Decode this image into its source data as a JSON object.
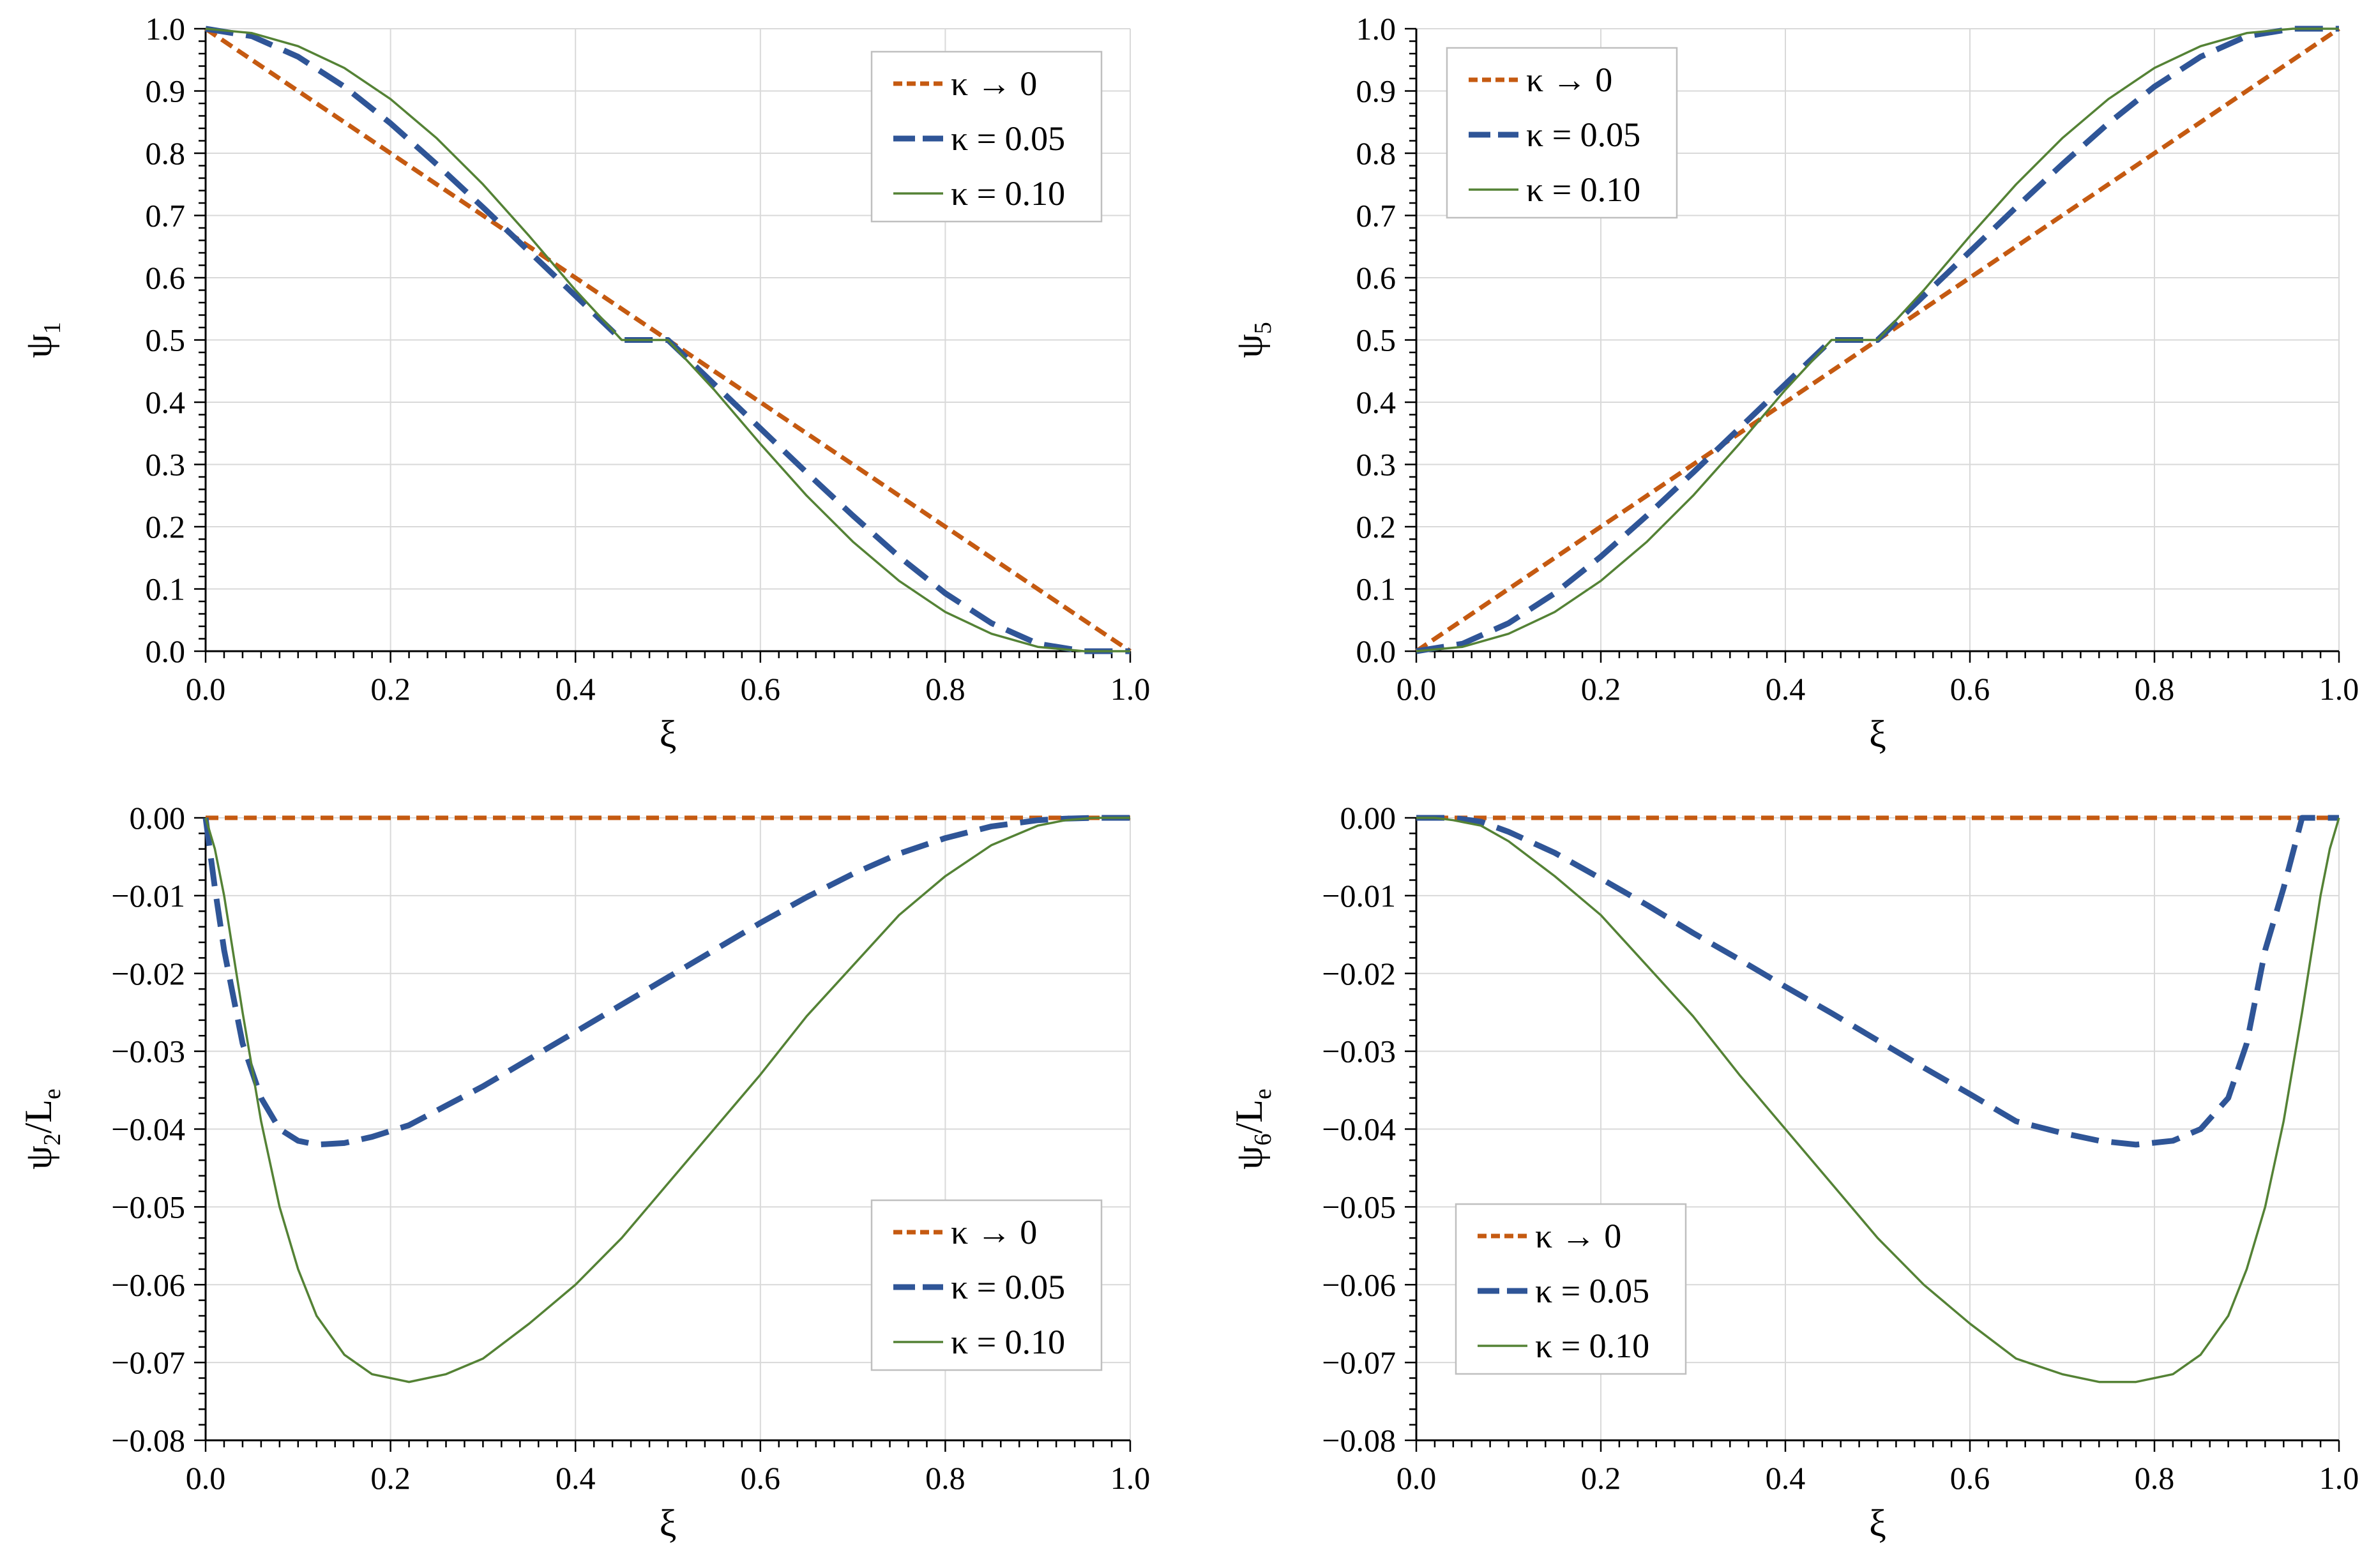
{
  "figure": {
    "title": ""
  },
  "legend_entries": [
    {
      "key": "k0",
      "label": "κ → 0",
      "color": "#C55A11",
      "style": "dotted"
    },
    {
      "key": "k05",
      "label": "κ = 0.05",
      "color": "#2F5597",
      "style": "dashed"
    },
    {
      "key": "k10",
      "label": "κ = 0.10",
      "color": "#548235",
      "style": "solid"
    }
  ],
  "chart_data": [
    {
      "id": "psi1",
      "type": "line",
      "title": "",
      "xlabel": "ξ",
      "ylabel_main": "ψ",
      "ylabel_sub": "1",
      "ylabel_suffix": "",
      "xlim": [
        0,
        1
      ],
      "ylim": [
        0,
        1
      ],
      "xticks": [
        "0.0",
        "0.2",
        "0.4",
        "0.6",
        "0.8",
        "1.0"
      ],
      "yticks": [
        "0.0",
        "0.1",
        "0.2",
        "0.3",
        "0.4",
        "0.5",
        "0.6",
        "0.7",
        "0.8",
        "0.9",
        "1.0"
      ],
      "grid": true,
      "legend_position": "top-right",
      "x": [
        0,
        0.05,
        0.1,
        0.15,
        0.2,
        0.25,
        0.3,
        0.35,
        0.4,
        0.45,
        0.5,
        0.55,
        0.6,
        0.65,
        0.7,
        0.75,
        0.8,
        0.85,
        0.9,
        0.95,
        1.0
      ],
      "series": [
        {
          "name": "κ → 0",
          "values": [
            1.0,
            0.95,
            0.9,
            0.85,
            0.8,
            0.75,
            0.7,
            0.65,
            0.6,
            0.55,
            0.5,
            0.45,
            0.4,
            0.35,
            0.3,
            0.25,
            0.2,
            0.15,
            0.1,
            0.05,
            0.0
          ]
        },
        {
          "name": "κ = 0.05",
          "values": [
            1.0,
            0.988,
            0.955,
            0.907,
            0.848,
            0.782,
            0.713,
            0.642,
            0.571,
            0.5,
            0.5,
            0.429,
            0.358,
            0.287,
            0.218,
            0.152,
            0.093,
            0.045,
            0.012,
            0.0,
            0.0
          ]
        },
        {
          "name": "κ = 0.10",
          "values": [
            1.0,
            0.993,
            0.972,
            0.937,
            0.887,
            0.824,
            0.75,
            0.667,
            0.58,
            0.5,
            0.5,
            0.42,
            0.333,
            0.25,
            0.176,
            0.113,
            0.063,
            0.028,
            0.007,
            0.0,
            0.0
          ]
        }
      ]
    },
    {
      "id": "psi5",
      "type": "line",
      "title": "",
      "xlabel": "ξ",
      "ylabel_main": "ψ",
      "ylabel_sub": "5",
      "ylabel_suffix": "",
      "xlim": [
        0,
        1
      ],
      "ylim": [
        0,
        1
      ],
      "xticks": [
        "0.0",
        "0.2",
        "0.4",
        "0.6",
        "0.8",
        "1.0"
      ],
      "yticks": [
        "0.0",
        "0.1",
        "0.2",
        "0.3",
        "0.4",
        "0.5",
        "0.6",
        "0.7",
        "0.8",
        "0.9",
        "1.0"
      ],
      "grid": true,
      "legend_position": "top-left",
      "x": [
        0,
        0.05,
        0.1,
        0.15,
        0.2,
        0.25,
        0.3,
        0.35,
        0.4,
        0.45,
        0.5,
        0.55,
        0.6,
        0.65,
        0.7,
        0.75,
        0.8,
        0.85,
        0.9,
        0.95,
        1.0
      ],
      "series": [
        {
          "name": "κ → 0",
          "values": [
            0.0,
            0.05,
            0.1,
            0.15,
            0.2,
            0.25,
            0.3,
            0.35,
            0.4,
            0.45,
            0.5,
            0.55,
            0.6,
            0.65,
            0.7,
            0.75,
            0.8,
            0.85,
            0.9,
            0.95,
            1.0
          ]
        },
        {
          "name": "κ = 0.05",
          "values": [
            0.0,
            0.012,
            0.045,
            0.093,
            0.152,
            0.218,
            0.287,
            0.358,
            0.429,
            0.5,
            0.5,
            0.571,
            0.642,
            0.713,
            0.782,
            0.848,
            0.907,
            0.955,
            0.988,
            1.0,
            1.0
          ]
        },
        {
          "name": "κ = 0.10",
          "values": [
            0.0,
            0.007,
            0.028,
            0.063,
            0.113,
            0.176,
            0.25,
            0.333,
            0.42,
            0.5,
            0.5,
            0.58,
            0.667,
            0.75,
            0.824,
            0.887,
            0.937,
            0.972,
            0.993,
            1.0,
            1.0
          ]
        }
      ]
    },
    {
      "id": "psi2",
      "type": "line",
      "title": "",
      "xlabel": "ξ",
      "ylabel_main": "ψ",
      "ylabel_sub": "2",
      "ylabel_suffix": "/L",
      "ylabel_suffix_sub": "e",
      "xlim": [
        0,
        1
      ],
      "ylim": [
        -0.08,
        0
      ],
      "xticks": [
        "0.0",
        "0.2",
        "0.4",
        "0.6",
        "0.8",
        "1.0"
      ],
      "yticks": [
        "−0.08",
        "−0.07",
        "−0.06",
        "−0.05",
        "−0.04",
        "−0.03",
        "−0.02",
        "−0.01",
        "0.00"
      ],
      "grid": true,
      "legend_position": "bottom-right",
      "x": [
        0,
        0.01,
        0.02,
        0.04,
        0.06,
        0.08,
        0.1,
        0.12,
        0.15,
        0.18,
        0.22,
        0.26,
        0.3,
        0.35,
        0.4,
        0.45,
        0.5,
        0.55,
        0.6,
        0.65,
        0.7,
        0.75,
        0.8,
        0.85,
        0.9,
        0.93,
        0.96,
        0.98,
        1.0
      ],
      "series": [
        {
          "name": "κ → 0",
          "values": [
            0,
            0,
            0,
            0,
            0,
            0,
            0,
            0,
            0,
            0,
            0,
            0,
            0,
            0,
            0,
            0,
            0,
            0,
            0,
            0,
            0,
            0,
            0,
            0,
            0,
            0,
            0,
            0,
            0
          ]
        },
        {
          "name": "κ = 0.05",
          "values": [
            0,
            -0.009,
            -0.017,
            -0.029,
            -0.036,
            -0.04,
            -0.0415,
            -0.042,
            -0.0418,
            -0.041,
            -0.0395,
            -0.037,
            -0.0345,
            -0.031,
            -0.0275,
            -0.024,
            -0.0205,
            -0.017,
            -0.0135,
            -0.0102,
            -0.0072,
            -0.0046,
            -0.0026,
            -0.0011,
            -0.0003,
            -0.0001,
            0,
            0,
            0
          ]
        },
        {
          "name": "κ = 0.10",
          "values": [
            0,
            -0.004,
            -0.01,
            -0.025,
            -0.039,
            -0.05,
            -0.058,
            -0.064,
            -0.069,
            -0.0715,
            -0.0725,
            -0.0715,
            -0.0695,
            -0.065,
            -0.06,
            -0.054,
            -0.047,
            -0.04,
            -0.033,
            -0.0255,
            -0.019,
            -0.0125,
            -0.0075,
            -0.0035,
            -0.001,
            -0.0003,
            0,
            0,
            0
          ]
        }
      ]
    },
    {
      "id": "psi6",
      "type": "line",
      "title": "",
      "xlabel": "ξ",
      "ylabel_main": "ψ",
      "ylabel_sub": "6",
      "ylabel_suffix": "/L",
      "ylabel_suffix_sub": "e",
      "xlim": [
        0,
        1
      ],
      "ylim": [
        -0.08,
        0
      ],
      "xticks": [
        "0.0",
        "0.2",
        "0.4",
        "0.6",
        "0.8",
        "1.0"
      ],
      "yticks": [
        "−0.08",
        "−0.07",
        "−0.06",
        "−0.05",
        "−0.04",
        "−0.03",
        "−0.02",
        "−0.01",
        "0.00"
      ],
      "grid": true,
      "legend_position": "bottom-left",
      "x": [
        0,
        0.02,
        0.04,
        0.07,
        0.1,
        0.15,
        0.2,
        0.25,
        0.3,
        0.35,
        0.4,
        0.45,
        0.5,
        0.55,
        0.6,
        0.65,
        0.7,
        0.74,
        0.78,
        0.82,
        0.85,
        0.88,
        0.9,
        0.92,
        0.94,
        0.96,
        0.98,
        0.99,
        1.0
      ],
      "series": [
        {
          "name": "κ → 0",
          "values": [
            0,
            0,
            0,
            0,
            0,
            0,
            0,
            0,
            0,
            0,
            0,
            0,
            0,
            0,
            0,
            0,
            0,
            0,
            0,
            0,
            0,
            0,
            0,
            0,
            0,
            0,
            0,
            0,
            0
          ]
        },
        {
          "name": "κ = 0.05",
          "values": [
            0,
            0,
            0,
            -0.0005,
            -0.0018,
            -0.0045,
            -0.0078,
            -0.0112,
            -0.0148,
            -0.0182,
            -0.0217,
            -0.0251,
            -0.0286,
            -0.0321,
            -0.0355,
            -0.039,
            -0.0405,
            -0.0415,
            -0.042,
            -0.0415,
            -0.04,
            -0.036,
            -0.029,
            -0.017,
            -0.009,
            0,
            0,
            0,
            0
          ]
        },
        {
          "name": "κ = 0.10",
          "values": [
            0,
            0,
            -0.0003,
            -0.001,
            -0.003,
            -0.0075,
            -0.0125,
            -0.019,
            -0.0255,
            -0.033,
            -0.04,
            -0.047,
            -0.054,
            -0.06,
            -0.065,
            -0.0695,
            -0.0715,
            -0.0725,
            -0.0725,
            -0.0715,
            -0.069,
            -0.064,
            -0.058,
            -0.05,
            -0.039,
            -0.025,
            -0.01,
            -0.004,
            0
          ]
        }
      ]
    }
  ]
}
